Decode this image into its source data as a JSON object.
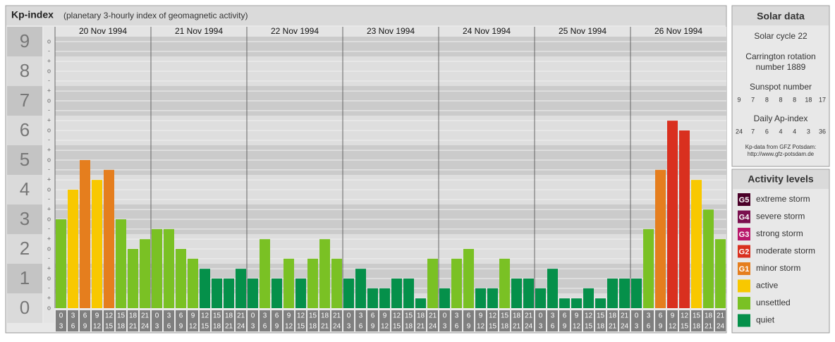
{
  "chart_data": {
    "type": "bar",
    "title": "Kp-index",
    "subtitle": "(planetary 3-hourly index of geomagnetic activity)",
    "days": [
      "20 Nov 1994",
      "21 Nov 1994",
      "22 Nov 1994",
      "23 Nov 1994",
      "24 Nov 1994",
      "25 Nov 1994",
      "26 Nov 1994"
    ],
    "hour_starts": [
      0,
      3,
      6,
      9,
      12,
      15,
      18,
      21
    ],
    "hour_ends": [
      3,
      6,
      9,
      12,
      15,
      18,
      21,
      24
    ],
    "values": [
      3,
      4,
      5,
      4.33,
      4.67,
      3,
      2,
      2.33,
      2.67,
      2.67,
      2,
      1.67,
      1.33,
      1,
      1,
      1.33,
      1,
      2.33,
      1,
      1.67,
      1,
      1.67,
      2.33,
      1.67,
      1,
      1.33,
      0.67,
      0.67,
      1,
      1,
      0.33,
      1.67,
      0.67,
      1.67,
      2,
      0.67,
      0.67,
      1.67,
      1,
      1,
      0.67,
      1.33,
      0.33,
      0.33,
      0.67,
      0.33,
      1,
      1,
      1,
      2.67,
      4.67,
      6.33,
      6,
      4.33,
      3.33,
      2.33
    ],
    "colors": [
      "#7ac124",
      "#f8c800",
      "#e57e1e",
      "#f8c800",
      "#e57e1e",
      "#7ac124",
      "#7ac124",
      "#7ac124",
      "#7ac124",
      "#7ac124",
      "#7ac124",
      "#7ac124",
      "#05904a",
      "#05904a",
      "#05904a",
      "#05904a",
      "#05904a",
      "#7ac124",
      "#05904a",
      "#7ac124",
      "#05904a",
      "#7ac124",
      "#7ac124",
      "#7ac124",
      "#05904a",
      "#05904a",
      "#05904a",
      "#05904a",
      "#05904a",
      "#05904a",
      "#05904a",
      "#7ac124",
      "#05904a",
      "#7ac124",
      "#7ac124",
      "#05904a",
      "#05904a",
      "#7ac124",
      "#05904a",
      "#05904a",
      "#05904a",
      "#05904a",
      "#05904a",
      "#05904a",
      "#05904a",
      "#05904a",
      "#05904a",
      "#05904a",
      "#05904a",
      "#7ac124",
      "#e57e1e",
      "#d9301f",
      "#d9301f",
      "#f8c800",
      "#7ac124",
      "#7ac124"
    ],
    "ylim": [
      0,
      9.5
    ],
    "yticks": [
      0,
      1,
      2,
      3,
      4,
      5,
      6,
      7,
      8,
      9
    ],
    "minor_yticks": [
      {
        "value": 0,
        "label": "o"
      },
      {
        "value": 0.33,
        "label": "+"
      },
      {
        "value": 0.67,
        "label": "-"
      },
      {
        "value": 1,
        "label": "o"
      },
      {
        "value": 1.33,
        "label": "+"
      },
      {
        "value": 1.67,
        "label": "-"
      },
      {
        "value": 2,
        "label": "o"
      },
      {
        "value": 2.33,
        "label": "+"
      },
      {
        "value": 2.67,
        "label": "-"
      },
      {
        "value": 3,
        "label": "o"
      },
      {
        "value": 3.33,
        "label": "+"
      },
      {
        "value": 3.67,
        "label": "-"
      },
      {
        "value": 4,
        "label": "o"
      },
      {
        "value": 4.33,
        "label": "+"
      },
      {
        "value": 4.67,
        "label": "-"
      },
      {
        "value": 5,
        "label": "o"
      },
      {
        "value": 5.33,
        "label": "+"
      },
      {
        "value": 5.67,
        "label": "-"
      },
      {
        "value": 6,
        "label": "o"
      },
      {
        "value": 6.33,
        "label": "+"
      },
      {
        "value": 6.67,
        "label": "-"
      },
      {
        "value": 7,
        "label": "o"
      },
      {
        "value": 7.33,
        "label": "+"
      },
      {
        "value": 7.67,
        "label": "-"
      },
      {
        "value": 8,
        "label": "o"
      },
      {
        "value": 8.33,
        "label": "+"
      },
      {
        "value": 8.67,
        "label": "-"
      },
      {
        "value": 9,
        "label": "o"
      }
    ],
    "grid": true,
    "legend_title": "Activity levels",
    "legend_items": [
      {
        "code": "G5",
        "label": "extreme storm",
        "color": "#4a0028"
      },
      {
        "code": "G4",
        "label": "severe storm",
        "color": "#7a0f4e"
      },
      {
        "code": "G3",
        "label": "strong storm",
        "color": "#b8176a"
      },
      {
        "code": "G2",
        "label": "moderate storm",
        "color": "#d9301f"
      },
      {
        "code": "G1",
        "label": "minor storm",
        "color": "#e57e1e"
      },
      {
        "label": "active",
        "color": "#f8c800"
      },
      {
        "label": "unsettled",
        "color": "#7ac124"
      },
      {
        "label": "quiet",
        "color": "#05904a"
      }
    ]
  },
  "solar_data": {
    "title": "Solar data",
    "cycle": "Solar cycle 22",
    "carrington": [
      "Carrington rotation",
      "number 1889"
    ],
    "sunspot_title": "Sunspot number",
    "sunspot": [
      9,
      7,
      8,
      8,
      8,
      18,
      17
    ],
    "ap_title": "Daily Ap-index",
    "ap": [
      24,
      7,
      6,
      4,
      4,
      3,
      36
    ],
    "source": [
      "Kp-data from GFZ Potsdam:",
      "http://www.gfz-potsdam.de"
    ]
  }
}
